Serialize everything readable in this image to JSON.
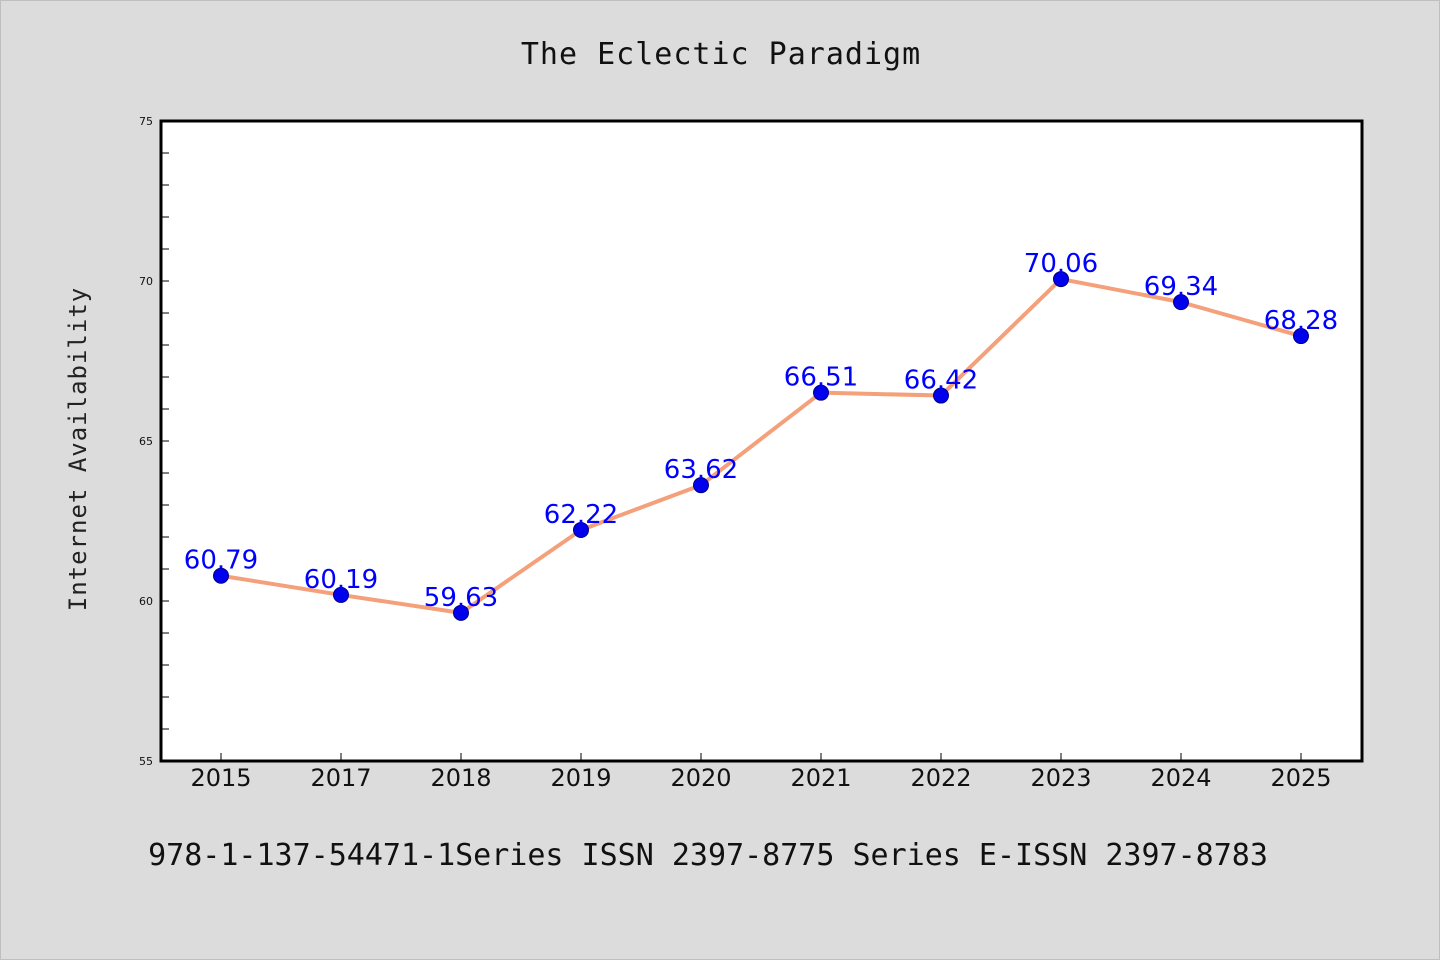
{
  "chart_data": {
    "type": "line",
    "title": "The Eclectic Paradigm",
    "xlabel": "",
    "ylabel": "Internet Availability",
    "categories": [
      "2015",
      "2017",
      "2018",
      "2019",
      "2020",
      "2021",
      "2022",
      "2023",
      "2024",
      "2025"
    ],
    "series": [
      {
        "values": [
          60.79,
          60.19,
          59.63,
          62.22,
          63.62,
          66.51,
          66.42,
          70.06,
          69.34,
          68.28
        ],
        "data_labels": [
          "60.79",
          "60.19",
          "59.63",
          "62.22",
          "63.62",
          "66.51",
          "66.42",
          "70.06",
          "69.34",
          "68.28"
        ],
        "line_color": "#f4a07a",
        "marker_color": "#0000ee",
        "label_color": "#0000ff"
      }
    ],
    "ylim": [
      55,
      75
    ],
    "yticks": [
      "55",
      "60",
      "65",
      "70",
      "75"
    ],
    "grid": false,
    "legend": "none"
  },
  "footer": "978-1-137-54471-1Series ISSN 2397-8775 Series E-ISSN 2397-8783",
  "colors": {
    "background": "#dcdcdc",
    "plot_background": "#ffffff",
    "axis": "#000000"
  }
}
